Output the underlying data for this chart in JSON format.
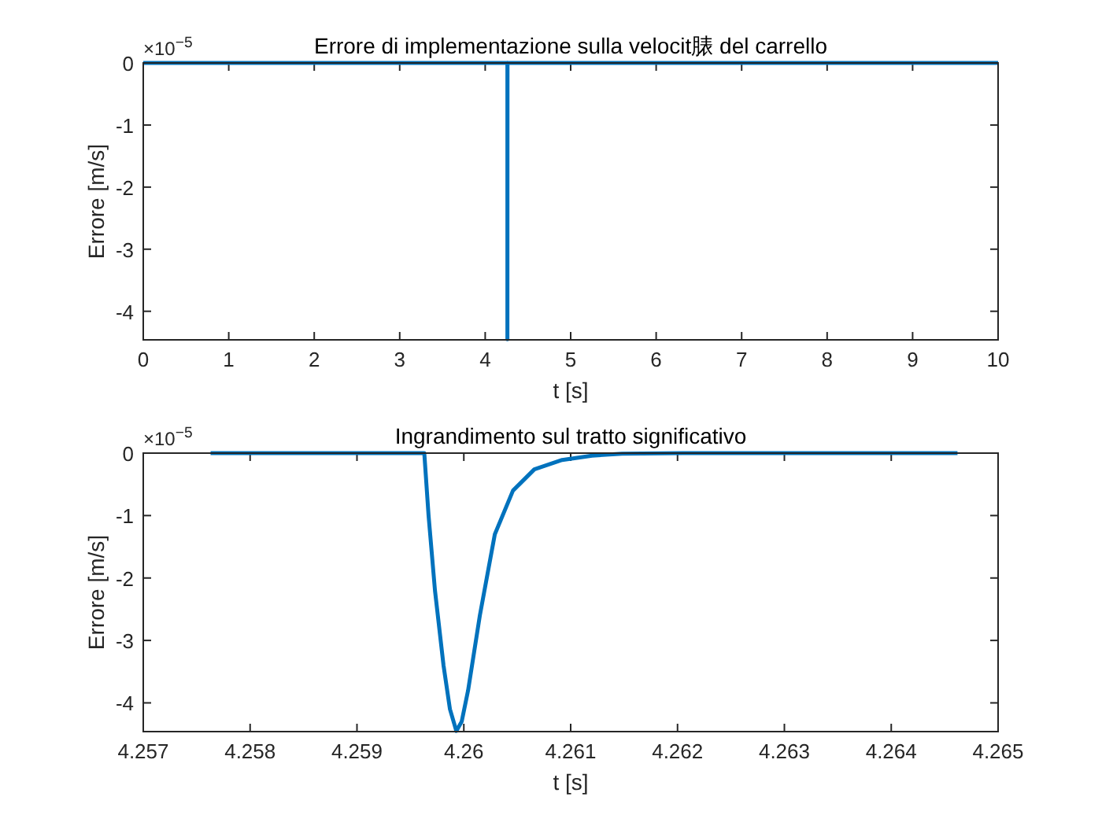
{
  "chart_data": [
    {
      "type": "line",
      "title": "Errore di implementazione sulla velocit脿 del carrello",
      "xlabel": "t [s]",
      "ylabel": "Errore [m/s]",
      "annotations": [
        "×10$^{−5}$"
      ],
      "x": [
        0,
        4.2596,
        4.25993,
        4.2612,
        10
      ],
      "series": [
        {
          "color": "#0072bd",
          "values": [
            0,
            0,
            -4.45,
            0,
            0
          ]
        }
      ],
      "xlim": [
        0,
        10
      ],
      "ylim": [
        -4.46,
        0
      ],
      "xticks": [
        0,
        1,
        2,
        3,
        4,
        5,
        6,
        7,
        8,
        9,
        10
      ],
      "yticks": [
        -4,
        -3,
        -2,
        -1,
        0
      ],
      "grid": false
    },
    {
      "type": "line",
      "title": "Ingrandimento sul tratto significativo",
      "xlabel": "t [s]",
      "ylabel": "Errore [m/s]",
      "annotations": [
        "×10$^{−5}$"
      ],
      "x": [
        4.25763,
        4.25963,
        4.25967,
        4.25973,
        4.25981,
        4.25987,
        4.25993,
        4.25998,
        4.26004,
        4.26015,
        4.26029,
        4.26046,
        4.26066,
        4.26092,
        4.2612,
        4.26148,
        4.26205,
        4.26462
      ],
      "series": [
        {
          "color": "#0072bd",
          "values": [
            0,
            0,
            -1.0,
            -2.2,
            -3.4,
            -4.1,
            -4.45,
            -4.3,
            -3.8,
            -2.6,
            -1.3,
            -0.6,
            -0.26,
            -0.11,
            -0.04,
            -0.01,
            0,
            0
          ]
        }
      ],
      "xlim": [
        4.257,
        4.265
      ],
      "ylim": [
        -4.46,
        0
      ],
      "xticks": [
        4.257,
        4.258,
        4.259,
        4.26,
        4.261,
        4.262,
        4.263,
        4.264,
        4.265
      ],
      "yticks": [
        -4,
        -3,
        -2,
        -1,
        0
      ],
      "grid": false
    }
  ]
}
